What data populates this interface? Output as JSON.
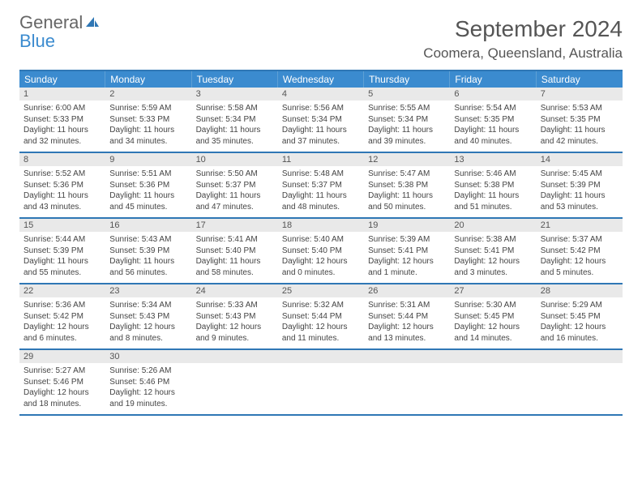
{
  "logo": {
    "text1": "General",
    "text2": "Blue"
  },
  "title": "September 2024",
  "location": "Coomera, Queensland, Australia",
  "weekdays": [
    "Sunday",
    "Monday",
    "Tuesday",
    "Wednesday",
    "Thursday",
    "Friday",
    "Saturday"
  ],
  "colors": {
    "header_bg": "#3b8bcf",
    "rule": "#2f77b5",
    "daynum_bg": "#e9e9e9"
  },
  "weeks": [
    [
      {
        "n": "1",
        "sr": "Sunrise: 6:00 AM",
        "ss": "Sunset: 5:33 PM",
        "d1": "Daylight: 11 hours",
        "d2": "and 32 minutes."
      },
      {
        "n": "2",
        "sr": "Sunrise: 5:59 AM",
        "ss": "Sunset: 5:33 PM",
        "d1": "Daylight: 11 hours",
        "d2": "and 34 minutes."
      },
      {
        "n": "3",
        "sr": "Sunrise: 5:58 AM",
        "ss": "Sunset: 5:34 PM",
        "d1": "Daylight: 11 hours",
        "d2": "and 35 minutes."
      },
      {
        "n": "4",
        "sr": "Sunrise: 5:56 AM",
        "ss": "Sunset: 5:34 PM",
        "d1": "Daylight: 11 hours",
        "d2": "and 37 minutes."
      },
      {
        "n": "5",
        "sr": "Sunrise: 5:55 AM",
        "ss": "Sunset: 5:34 PM",
        "d1": "Daylight: 11 hours",
        "d2": "and 39 minutes."
      },
      {
        "n": "6",
        "sr": "Sunrise: 5:54 AM",
        "ss": "Sunset: 5:35 PM",
        "d1": "Daylight: 11 hours",
        "d2": "and 40 minutes."
      },
      {
        "n": "7",
        "sr": "Sunrise: 5:53 AM",
        "ss": "Sunset: 5:35 PM",
        "d1": "Daylight: 11 hours",
        "d2": "and 42 minutes."
      }
    ],
    [
      {
        "n": "8",
        "sr": "Sunrise: 5:52 AM",
        "ss": "Sunset: 5:36 PM",
        "d1": "Daylight: 11 hours",
        "d2": "and 43 minutes."
      },
      {
        "n": "9",
        "sr": "Sunrise: 5:51 AM",
        "ss": "Sunset: 5:36 PM",
        "d1": "Daylight: 11 hours",
        "d2": "and 45 minutes."
      },
      {
        "n": "10",
        "sr": "Sunrise: 5:50 AM",
        "ss": "Sunset: 5:37 PM",
        "d1": "Daylight: 11 hours",
        "d2": "and 47 minutes."
      },
      {
        "n": "11",
        "sr": "Sunrise: 5:48 AM",
        "ss": "Sunset: 5:37 PM",
        "d1": "Daylight: 11 hours",
        "d2": "and 48 minutes."
      },
      {
        "n": "12",
        "sr": "Sunrise: 5:47 AM",
        "ss": "Sunset: 5:38 PM",
        "d1": "Daylight: 11 hours",
        "d2": "and 50 minutes."
      },
      {
        "n": "13",
        "sr": "Sunrise: 5:46 AM",
        "ss": "Sunset: 5:38 PM",
        "d1": "Daylight: 11 hours",
        "d2": "and 51 minutes."
      },
      {
        "n": "14",
        "sr": "Sunrise: 5:45 AM",
        "ss": "Sunset: 5:39 PM",
        "d1": "Daylight: 11 hours",
        "d2": "and 53 minutes."
      }
    ],
    [
      {
        "n": "15",
        "sr": "Sunrise: 5:44 AM",
        "ss": "Sunset: 5:39 PM",
        "d1": "Daylight: 11 hours",
        "d2": "and 55 minutes."
      },
      {
        "n": "16",
        "sr": "Sunrise: 5:43 AM",
        "ss": "Sunset: 5:39 PM",
        "d1": "Daylight: 11 hours",
        "d2": "and 56 minutes."
      },
      {
        "n": "17",
        "sr": "Sunrise: 5:41 AM",
        "ss": "Sunset: 5:40 PM",
        "d1": "Daylight: 11 hours",
        "d2": "and 58 minutes."
      },
      {
        "n": "18",
        "sr": "Sunrise: 5:40 AM",
        "ss": "Sunset: 5:40 PM",
        "d1": "Daylight: 12 hours",
        "d2": "and 0 minutes."
      },
      {
        "n": "19",
        "sr": "Sunrise: 5:39 AM",
        "ss": "Sunset: 5:41 PM",
        "d1": "Daylight: 12 hours",
        "d2": "and 1 minute."
      },
      {
        "n": "20",
        "sr": "Sunrise: 5:38 AM",
        "ss": "Sunset: 5:41 PM",
        "d1": "Daylight: 12 hours",
        "d2": "and 3 minutes."
      },
      {
        "n": "21",
        "sr": "Sunrise: 5:37 AM",
        "ss": "Sunset: 5:42 PM",
        "d1": "Daylight: 12 hours",
        "d2": "and 5 minutes."
      }
    ],
    [
      {
        "n": "22",
        "sr": "Sunrise: 5:36 AM",
        "ss": "Sunset: 5:42 PM",
        "d1": "Daylight: 12 hours",
        "d2": "and 6 minutes."
      },
      {
        "n": "23",
        "sr": "Sunrise: 5:34 AM",
        "ss": "Sunset: 5:43 PM",
        "d1": "Daylight: 12 hours",
        "d2": "and 8 minutes."
      },
      {
        "n": "24",
        "sr": "Sunrise: 5:33 AM",
        "ss": "Sunset: 5:43 PM",
        "d1": "Daylight: 12 hours",
        "d2": "and 9 minutes."
      },
      {
        "n": "25",
        "sr": "Sunrise: 5:32 AM",
        "ss": "Sunset: 5:44 PM",
        "d1": "Daylight: 12 hours",
        "d2": "and 11 minutes."
      },
      {
        "n": "26",
        "sr": "Sunrise: 5:31 AM",
        "ss": "Sunset: 5:44 PM",
        "d1": "Daylight: 12 hours",
        "d2": "and 13 minutes."
      },
      {
        "n": "27",
        "sr": "Sunrise: 5:30 AM",
        "ss": "Sunset: 5:45 PM",
        "d1": "Daylight: 12 hours",
        "d2": "and 14 minutes."
      },
      {
        "n": "28",
        "sr": "Sunrise: 5:29 AM",
        "ss": "Sunset: 5:45 PM",
        "d1": "Daylight: 12 hours",
        "d2": "and 16 minutes."
      }
    ],
    [
      {
        "n": "29",
        "sr": "Sunrise: 5:27 AM",
        "ss": "Sunset: 5:46 PM",
        "d1": "Daylight: 12 hours",
        "d2": "and 18 minutes."
      },
      {
        "n": "30",
        "sr": "Sunrise: 5:26 AM",
        "ss": "Sunset: 5:46 PM",
        "d1": "Daylight: 12 hours",
        "d2": "and 19 minutes."
      },
      {
        "n": "",
        "sr": "",
        "ss": "",
        "d1": "",
        "d2": ""
      },
      {
        "n": "",
        "sr": "",
        "ss": "",
        "d1": "",
        "d2": ""
      },
      {
        "n": "",
        "sr": "",
        "ss": "",
        "d1": "",
        "d2": ""
      },
      {
        "n": "",
        "sr": "",
        "ss": "",
        "d1": "",
        "d2": ""
      },
      {
        "n": "",
        "sr": "",
        "ss": "",
        "d1": "",
        "d2": ""
      }
    ]
  ]
}
